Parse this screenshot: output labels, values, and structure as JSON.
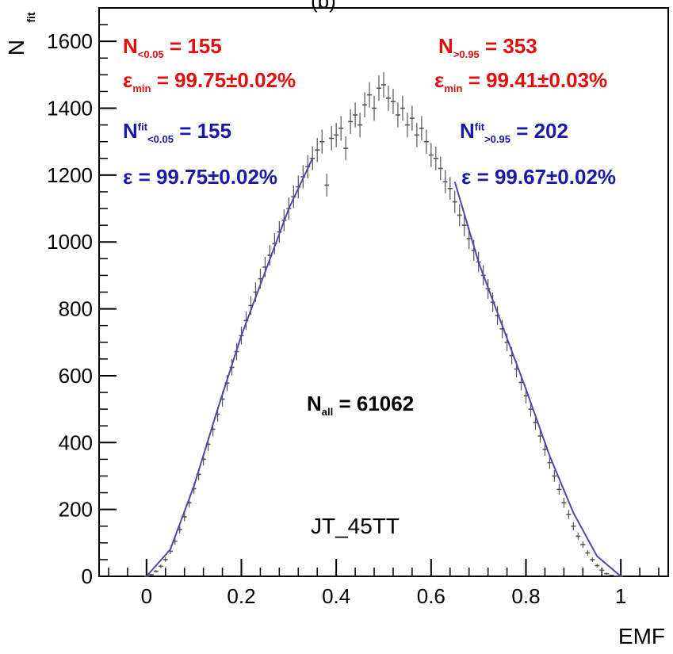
{
  "chart_data": {
    "type": "line",
    "title": "",
    "xlabel": "EMF",
    "ylabel": "N",
    "ylabel_sup": "fit",
    "xlim": [
      -0.1,
      1.1
    ],
    "ylim": [
      0,
      1700
    ],
    "xticks": [
      0,
      0.2,
      0.4,
      0.6,
      0.8,
      1
    ],
    "xtick_labels": [
      "0",
      "0.2",
      "0.4",
      "0.6",
      "0.8",
      "1"
    ],
    "yticks": [
      0,
      200,
      400,
      600,
      800,
      1000,
      1200,
      1400,
      1600
    ],
    "ytick_labels": [
      "0",
      "200",
      "400",
      "600",
      "800",
      "1000",
      "1200",
      "1400",
      "1600"
    ],
    "grid": false,
    "series": [
      {
        "kind": "histogram",
        "color": "#555555",
        "bin_width": 0.01,
        "x": [
          0.0,
          0.01,
          0.02,
          0.03,
          0.04,
          0.05,
          0.06,
          0.07,
          0.08,
          0.09,
          0.1,
          0.11,
          0.12,
          0.13,
          0.14,
          0.15,
          0.16,
          0.17,
          0.18,
          0.19,
          0.2,
          0.21,
          0.22,
          0.23,
          0.24,
          0.25,
          0.26,
          0.27,
          0.28,
          0.29,
          0.3,
          0.31,
          0.32,
          0.33,
          0.34,
          0.35,
          0.36,
          0.37,
          0.38,
          0.39,
          0.4,
          0.41,
          0.42,
          0.43,
          0.44,
          0.45,
          0.46,
          0.47,
          0.48,
          0.49,
          0.5,
          0.51,
          0.52,
          0.53,
          0.54,
          0.55,
          0.56,
          0.57,
          0.58,
          0.59,
          0.6,
          0.61,
          0.62,
          0.63,
          0.64,
          0.65,
          0.66,
          0.67,
          0.68,
          0.69,
          0.7,
          0.71,
          0.72,
          0.73,
          0.74,
          0.75,
          0.76,
          0.77,
          0.78,
          0.79,
          0.8,
          0.81,
          0.82,
          0.83,
          0.84,
          0.85,
          0.86,
          0.87,
          0.88,
          0.89,
          0.9,
          0.91,
          0.92,
          0.93,
          0.94,
          0.95,
          0.96,
          0.97,
          0.98,
          0.99,
          1.0
        ],
        "values": [
          0,
          5,
          15,
          30,
          50,
          75,
          105,
          140,
          178,
          220,
          262,
          305,
          350,
          395,
          440,
          485,
          530,
          578,
          625,
          672,
          720,
          765,
          810,
          850,
          890,
          925,
          960,
          995,
          1030,
          1065,
          1100,
          1135,
          1165,
          1195,
          1225,
          1250,
          1275,
          1300,
          1170,
          1310,
          1320,
          1340,
          1280,
          1360,
          1380,
          1350,
          1410,
          1440,
          1400,
          1460,
          1470,
          1430,
          1420,
          1380,
          1400,
          1350,
          1370,
          1320,
          1340,
          1300,
          1260,
          1250,
          1220,
          1180,
          1160,
          1120,
          1080,
          1050,
          1010,
          975,
          940,
          900,
          860,
          820,
          780,
          740,
          700,
          660,
          620,
          580,
          540,
          500,
          460,
          420,
          380,
          340,
          300,
          260,
          220,
          185,
          150,
          120,
          95,
          70,
          50,
          32,
          18,
          8,
          3,
          1,
          0
        ]
      },
      {
        "kind": "fit",
        "color": "#4a4aa8",
        "x": [
          0.0,
          0.05,
          0.1,
          0.15,
          0.2,
          0.25,
          0.3,
          0.35,
          0.65,
          0.7,
          0.75,
          0.8,
          0.85,
          0.9,
          0.95,
          1.0
        ],
        "values": [
          0,
          80,
          270,
          500,
          720,
          910,
          1100,
          1250,
          1180,
          940,
          750,
          560,
          360,
          190,
          60,
          0
        ]
      }
    ]
  },
  "annotations": {
    "top_partial_label": "(b)",
    "left": {
      "n_thr_base": "N",
      "n_thr_sub": "<0.05",
      "n_thr_value": " = 155",
      "eps_min_base": "ε",
      "eps_min_sub": "min",
      "eps_min_value": " = 99.75±0.02%",
      "n_fit_base": "N",
      "n_fit_sup": "fit",
      "n_fit_sub": "<0.05",
      "n_fit_value": " = 155",
      "eps_base": "ε",
      "eps_value": " = 99.75±0.02%"
    },
    "right": {
      "n_thr_base": "N",
      "n_thr_sub": ">0.95",
      "n_thr_value": " = 353",
      "eps_min_base": "ε",
      "eps_min_sub": "min",
      "eps_min_value": " = 99.41±0.03%",
      "n_fit_base": "N",
      "n_fit_sup": "fit",
      "n_fit_sub": ">0.95",
      "n_fit_value": " = 202",
      "eps_base": "ε",
      "eps_value": " = 99.67±0.02%"
    },
    "n_all_base": "N",
    "n_all_sub": "all",
    "n_all_value": " = 61062",
    "trigger": "JT_45TT"
  },
  "colors": {
    "frame": "#000000",
    "histogram": "#555555",
    "fit": "#4a4aa8",
    "text_red": "#e01010",
    "text_blue": "#1a1aa8"
  }
}
